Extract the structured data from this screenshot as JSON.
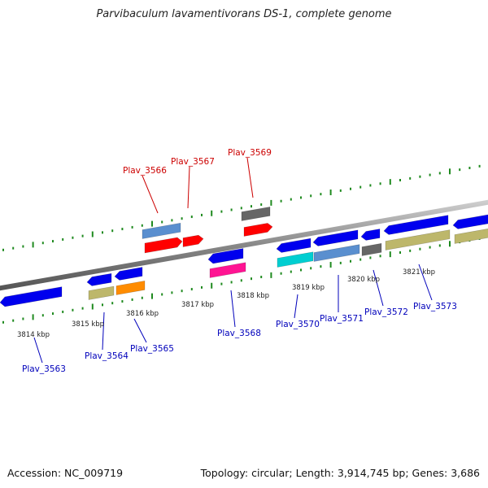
{
  "title": "Parvibaculum lavamentivorans DS-1, complete genome",
  "footer": {
    "accession": "Accession: NC_009719",
    "stats": "Topology: circular; Length: 3,914,745 bp; Genes: 3,686"
  },
  "colors": {
    "backbone": "#888888",
    "tick": "#1f8a1f",
    "forward_label": "#cc0000",
    "reverse_label": "#0000bb"
  },
  "scale_labels": [
    "3814 kbp",
    "3815 kbp",
    "3816 kbp",
    "3817 kbp",
    "3818 kbp",
    "3819 kbp",
    "3820 kbp",
    "3821 kbp"
  ],
  "genes_forward": [
    {
      "label": "Plav_3566",
      "color": "#ff0000"
    },
    {
      "label": "Plav_3567",
      "color": "#ff0000"
    },
    {
      "label": "Plav_3569",
      "color": "#ff0000"
    }
  ],
  "genes_reverse": [
    {
      "label": "Plav_3563",
      "color": "#0000ee"
    },
    {
      "label": "Plav_3564",
      "color": "#0000ee"
    },
    {
      "label": "Plav_3565",
      "color": "#0000ee"
    },
    {
      "label": "Plav_3568",
      "color": "#0000ee"
    },
    {
      "label": "Plav_3570",
      "color": "#0000ee"
    },
    {
      "label": "Plav_3571",
      "color": "#0000ee"
    },
    {
      "label": "Plav_3572",
      "color": "#0000ee"
    },
    {
      "label": "Plav_3573",
      "color": "#0000ee"
    }
  ],
  "other_features": [
    {
      "color": "#5a8fcf"
    },
    {
      "color": "#666666"
    },
    {
      "color": "#bdb76b"
    },
    {
      "color": "#ff8c00"
    },
    {
      "color": "#ff1493"
    },
    {
      "color": "#00ced1"
    },
    {
      "color": "#5a8fcf"
    },
    {
      "color": "#666666"
    },
    {
      "color": "#bdb76b"
    },
    {
      "color": "#bdb76b"
    }
  ]
}
